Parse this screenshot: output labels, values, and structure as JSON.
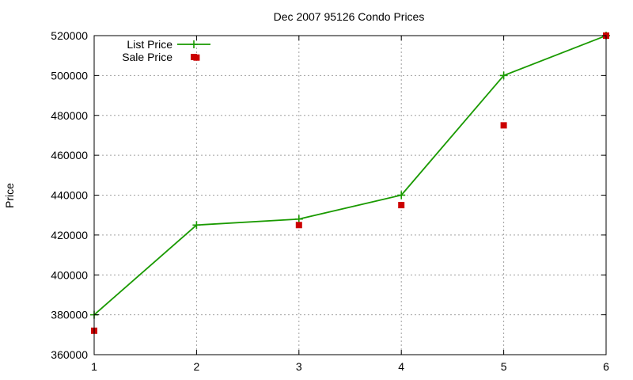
{
  "chart_data": {
    "type": "line",
    "title": "Dec 2007 95126 Condo Prices",
    "xlabel": "",
    "ylabel": "Price",
    "xlim": [
      1,
      6
    ],
    "ylim": [
      360000,
      520000
    ],
    "x_ticks": [
      1,
      2,
      3,
      4,
      5,
      6
    ],
    "y_ticks": [
      360000,
      380000,
      400000,
      420000,
      440000,
      460000,
      480000,
      500000,
      520000
    ],
    "grid": true,
    "legend_position": "top-left",
    "series": [
      {
        "name": "List Price",
        "style": "linespoints",
        "marker": "plus",
        "color": "#1a9a00",
        "points": [
          {
            "x": 1,
            "y": 380000
          },
          {
            "x": 2,
            "y": 425000
          },
          {
            "x": 3,
            "y": 428000
          },
          {
            "x": 4,
            "y": 440000
          },
          {
            "x": 5,
            "y": 500000
          },
          {
            "x": 6,
            "y": 520000
          }
        ]
      },
      {
        "name": "Sale Price",
        "style": "points",
        "marker": "square",
        "color": "#cc0000",
        "points": [
          {
            "x": 1,
            "y": 372000
          },
          {
            "x": 2,
            "y": 509000
          },
          {
            "x": 3,
            "y": 425000
          },
          {
            "x": 4,
            "y": 435000
          },
          {
            "x": 5,
            "y": 475000
          },
          {
            "x": 6,
            "y": 520000
          }
        ]
      }
    ]
  }
}
